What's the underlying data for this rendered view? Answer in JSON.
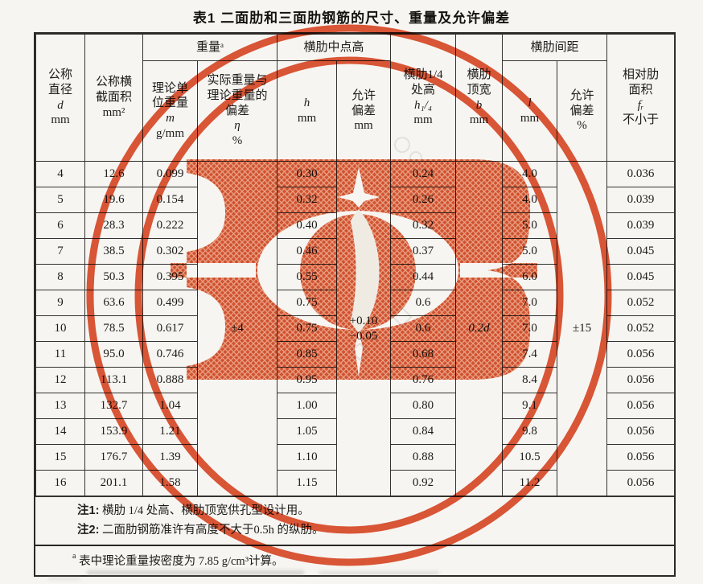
{
  "title": "表1  二面肋和三面肋钢筋的尺寸、重量及允许偏差",
  "colors": {
    "stamp_red": "#dc4a28",
    "paper": "#f7f5f1",
    "ink": "#1d1c1a"
  },
  "table": {
    "groups": {
      "weight": "重量ᵃ",
      "mid_height": "横肋中点高",
      "spacing": "横肋间距"
    },
    "headers": {
      "diameter": {
        "lines": "公称\n直径",
        "symbol": "d",
        "unit": "mm"
      },
      "area": {
        "lines": "公称横\n截面积",
        "unit": "mm²"
      },
      "unit_weight": {
        "lines": "理论单\n位重量",
        "symbol": "m",
        "unit": "g/mm"
      },
      "weight_dev": {
        "lines": "实际重量与\n理论重量的\n偏差",
        "symbol": "η",
        "unit": "%"
      },
      "h": {
        "symbol": "h",
        "unit": "mm"
      },
      "h_tol": {
        "lines": "允许\n偏差",
        "unit": "mm"
      },
      "h_quarter": {
        "lines": "横肋1/4\n处高",
        "symbol": "h₁/₄",
        "unit": "mm"
      },
      "rib_top_width": {
        "lines": "横肋\n顶宽",
        "symbol": "b",
        "unit": "mm"
      },
      "l": {
        "symbol": "l",
        "unit": "mm"
      },
      "l_tol": {
        "lines": "允许\n偏差",
        "unit": "%"
      },
      "rel_rib_area": {
        "lines": "相对肋\n面积",
        "symbol": "fᵣ",
        "note": "不小于"
      }
    },
    "merged": {
      "eta": "±4",
      "h_tol": "+0.10\n−0.05",
      "b": "0.2d",
      "l_tol": "±15"
    },
    "rows": [
      {
        "d": "4",
        "area": "12.6",
        "weight": "0.099",
        "h": "0.30",
        "h14": "0.24",
        "l": "4.0",
        "fr": "0.036"
      },
      {
        "d": "5",
        "area": "19.6",
        "weight": "0.154",
        "h": "0.32",
        "h14": "0.26",
        "l": "4.0",
        "fr": "0.039"
      },
      {
        "d": "6",
        "area": "28.3",
        "weight": "0.222",
        "h": "0.40",
        "h14": "0.32",
        "l": "5.0",
        "fr": "0.039"
      },
      {
        "d": "7",
        "area": "38.5",
        "weight": "0.302",
        "h": "0.46",
        "h14": "0.37",
        "l": "5.0",
        "fr": "0.045"
      },
      {
        "d": "8",
        "area": "50.3",
        "weight": "0.395",
        "h": "0.55",
        "h14": "0.44",
        "l": "6.0",
        "fr": "0.045"
      },
      {
        "d": "9",
        "area": "63.6",
        "weight": "0.499",
        "h": "0.75",
        "h14": "0.6",
        "l": "7.0",
        "fr": "0.052"
      },
      {
        "d": "10",
        "area": "78.5",
        "weight": "0.617",
        "h": "0.75",
        "h14": "0.6",
        "l": "7.0",
        "fr": "0.052"
      },
      {
        "d": "11",
        "area": "95.0",
        "weight": "0.746",
        "h": "0.85",
        "h14": "0.68",
        "l": "7.4",
        "fr": "0.056"
      },
      {
        "d": "12",
        "area": "113.1",
        "weight": "0.888",
        "h": "0.95",
        "h14": "0.76",
        "l": "8.4",
        "fr": "0.056"
      },
      {
        "d": "13",
        "area": "132.7",
        "weight": "1.04",
        "h": "1.00",
        "h14": "0.80",
        "l": "9.1",
        "fr": "0.056"
      },
      {
        "d": "14",
        "area": "153.9",
        "weight": "1.21",
        "h": "1.05",
        "h14": "0.84",
        "l": "9.8",
        "fr": "0.056"
      },
      {
        "d": "15",
        "area": "176.7",
        "weight": "1.39",
        "h": "1.10",
        "h14": "0.88",
        "l": "10.5",
        "fr": "0.056"
      },
      {
        "d": "16",
        "area": "201.1",
        "weight": "1.58",
        "h": "1.15",
        "h14": "0.92",
        "l": "11.2",
        "fr": "0.056"
      }
    ]
  },
  "notes": {
    "note1_label": "注1:",
    "note1": "横肋 1/4 处高、横肋顶宽供孔型设计用。",
    "note2_label": "注2:",
    "note2": "二面肋钢筋准许有高度不大于0.5h 的纵肋。",
    "footnote_marker": "a",
    "footnote": "表中理论重量按密度为 7.85 g/cm³计算。"
  }
}
